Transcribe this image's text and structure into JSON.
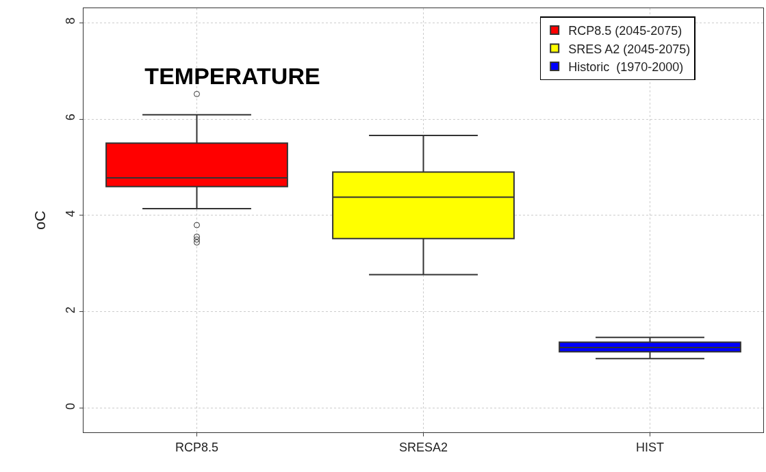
{
  "chart_data": {
    "type": "box",
    "title": "TEMPERATURE",
    "ylabel": "oC",
    "categories": [
      "RCP8.5",
      "SRESA2",
      "HIST"
    ],
    "series": [
      {
        "name": "RCP8.5 (2045-2075)",
        "color": "#ff0000",
        "boxes": [
          {
            "low": 4.14,
            "q1": 4.6,
            "median": 4.78,
            "q3": 5.5,
            "high": 6.09,
            "outliers": [
              6.52,
              3.8,
              3.56,
              3.5,
              3.44
            ]
          },
          null,
          null
        ]
      },
      {
        "name": "SRES A2 (2045-2075)",
        "color": "#ffff00",
        "boxes": [
          null,
          {
            "low": 2.77,
            "q1": 3.52,
            "median": 4.38,
            "q3": 4.9,
            "high": 5.66
          },
          null
        ]
      },
      {
        "name": "Historic  (1970-2000)",
        "color": "#0000ff",
        "boxes": [
          null,
          null,
          {
            "low": 1.03,
            "q1": 1.17,
            "median": 1.26,
            "q3": 1.37,
            "high": 1.47
          }
        ]
      }
    ],
    "ylim": [
      -0.5,
      8.3
    ],
    "yticks": [
      0,
      2,
      4,
      6,
      8
    ],
    "grid": true,
    "legend": "top right"
  }
}
